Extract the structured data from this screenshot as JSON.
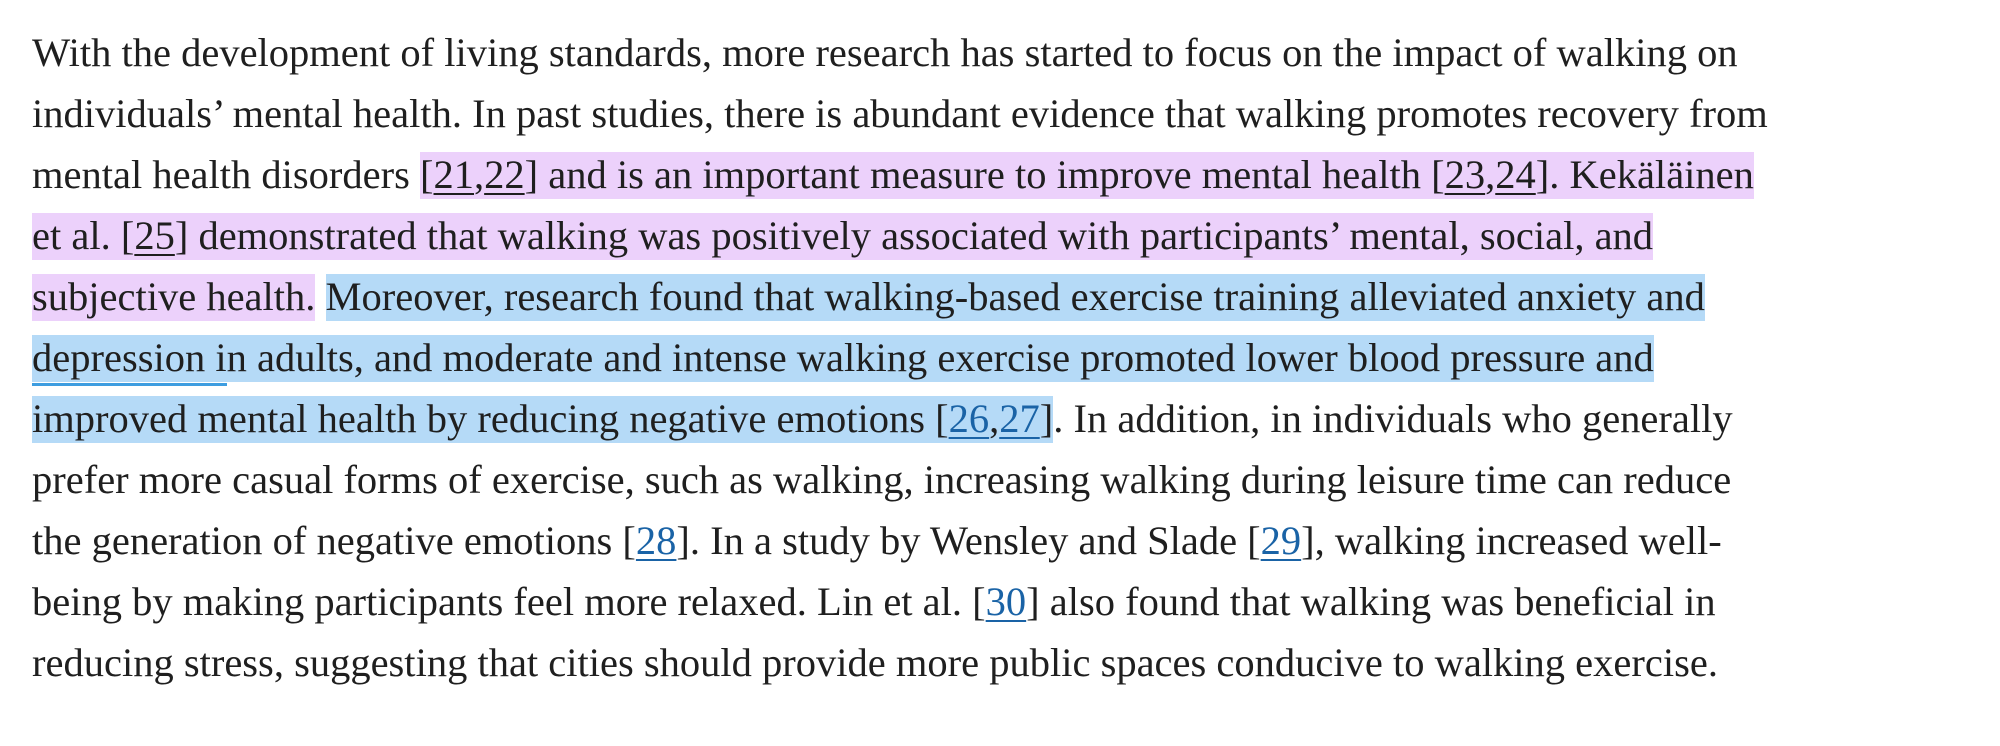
{
  "paragraph": {
    "l1": "With the development of living standards, more research has started to focus on the impact of walking on",
    "l2": "individuals’ mental health. In past studies, there is abundant evidence that walking promotes recovery from",
    "l3_pre": "mental health disorders ",
    "l3_hl_a": "[",
    "l3_ref21": "21",
    "l3_comma1": ",",
    "l3_ref22": "22",
    "l3_hl_b": "] and is an important measure to improve mental health [",
    "l3_ref23": "23",
    "l3_comma2": ",",
    "l3_ref24": "24",
    "l3_hl_c": "]. Kekäläinen",
    "l4_a": "et al. [",
    "l4_ref25": "25",
    "l4_b": "] demonstrated that walking was positively associated with participants’ mental, social, and",
    "l5_purple": "subjective health.",
    "l5_space": " ",
    "l5_blue": "Moreover, research found that walking-based exercise training alleviated anxiety and",
    "l6_blue": "depression in adults, and moderate and intense walking exercise promoted lower blood pressure and",
    "l7_blue_a": "improved mental health by reducing negative emotions [",
    "l7_ref26": "26",
    "l7_comma": ",",
    "l7_ref27": "27",
    "l7_blue_b": "]",
    "l7_rest": ". In addition, in individuals who generally",
    "l8": "prefer more casual forms of exercise, such as walking, increasing walking during leisure time can reduce",
    "l9_a": "the generation of negative emotions [",
    "l9_ref28": "28",
    "l9_b": "]. In a study by Wensley and Slade [",
    "l9_ref29": "29",
    "l9_c": "], walking increased well-",
    "l10_a": "being by making participants feel more relaxed. Lin et al. [",
    "l10_ref30": "30",
    "l10_b": "] also found that walking was beneficial in",
    "l11": "reducing stress, suggesting that cities should provide more public spaces conducive to walking exercise."
  },
  "colors": {
    "text": "#1f1f1f",
    "link": "#1a63a6",
    "highlight_purple": "#ecd1fb",
    "highlight_blue": "#b5daf7"
  }
}
